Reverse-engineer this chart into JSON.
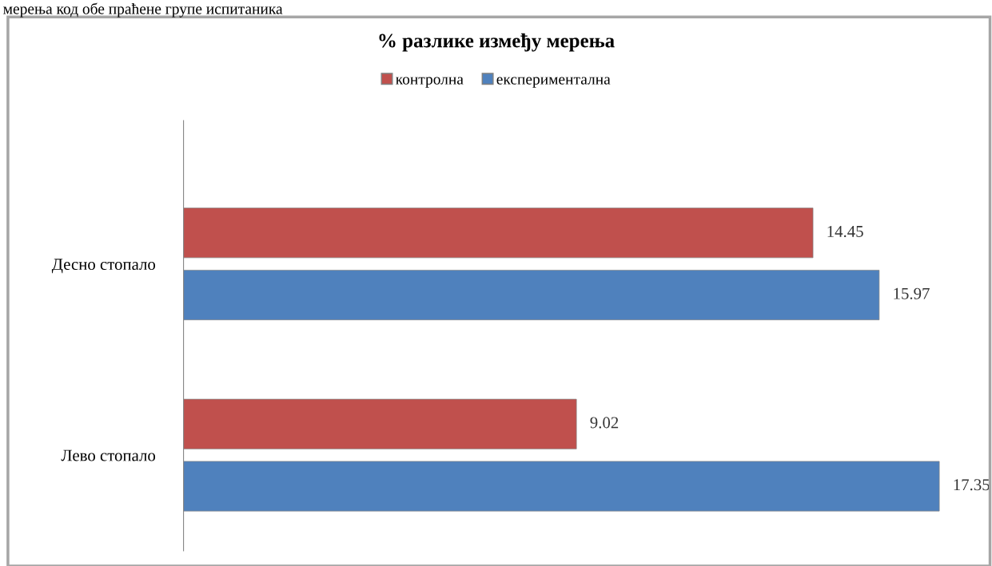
{
  "chart_data": {
    "type": "bar",
    "orientation": "horizontal",
    "title": "% разлике између мерења",
    "annotations": [
      "мерења код обе праћене групе испитаника"
    ],
    "categories": [
      "Десно стопало",
      "Лево стопало"
    ],
    "series": [
      {
        "name": "контролна",
        "color": "#c0504d",
        "values": [
          14.45,
          9.02
        ]
      },
      {
        "name": "експериментална",
        "color": "#4f81bd",
        "values": [
          15.97,
          17.35
        ]
      }
    ],
    "data_labels": true,
    "legend": "top",
    "grid": false
  }
}
